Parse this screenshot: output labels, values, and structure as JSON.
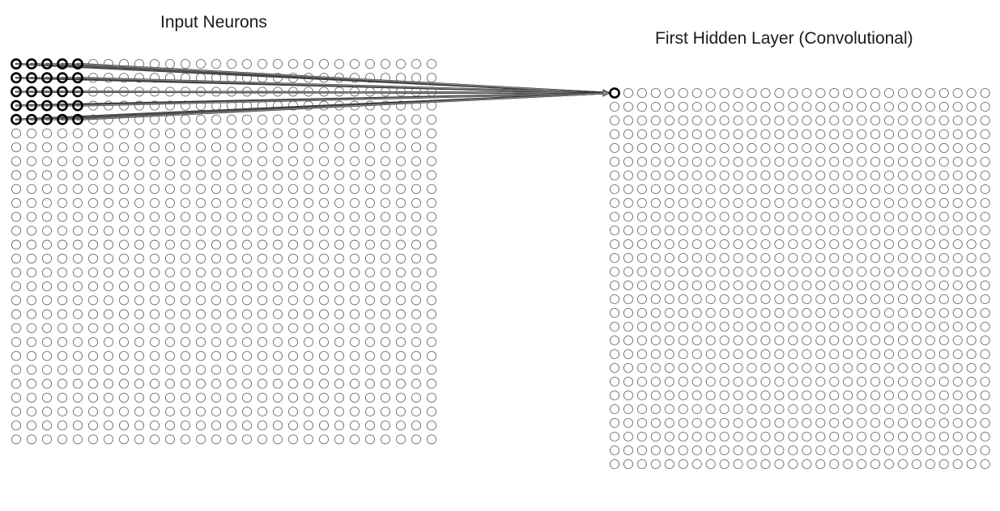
{
  "input_layer": {
    "title": "Input Neurons",
    "rows": 28,
    "cols": 28,
    "receptive_field": {
      "rows": 5,
      "cols": 5
    }
  },
  "hidden_layer": {
    "title": "First Hidden Layer (Convolutional)",
    "rows": 28,
    "cols": 28,
    "highlighted_neuron": {
      "row": 0,
      "col": 0
    }
  },
  "colors": {
    "neuron_stroke": "#6f6f6f",
    "highlight_stroke": "#000000",
    "connection": "#8a8a8a",
    "connection_outline": "#3a3a3a"
  }
}
